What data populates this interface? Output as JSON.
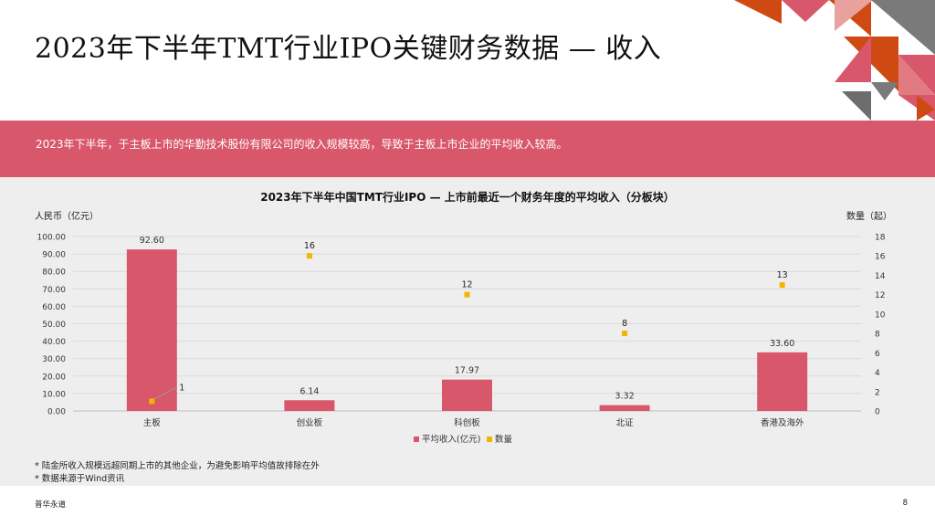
{
  "page": {
    "title": "2023年下半年TMT行业IPO关键财务数据 — 收入",
    "banner": "2023年下半年，于主板上市的华勤技术股份有限公司的收入规模较高，导致于主板上市企业的平均收入较高。",
    "notes": [
      "* 陆金所收入规模远超同期上市的其他企业，为避免影响平均值故排除在外",
      "* 数据来源于Wind资讯"
    ],
    "footer_left": "普华永道",
    "page_number": "8"
  },
  "colors": {
    "bar": "#d9576b",
    "marker": "#f5b400",
    "banner": "#d9576b",
    "panel": "#efeeee",
    "deco_orange": "#cf4a12",
    "deco_red": "#d9576b",
    "deco_gray": "#7a7a7a"
  },
  "chart_data": {
    "type": "bar",
    "title": "2023年下半年中国TMT行业IPO — 上市前最近一个财务年度的平均收入（分板块）",
    "ylabel": "人民币（亿元）",
    "y2label": "数量（起）",
    "categories": [
      "主板",
      "创业板",
      "科创板",
      "北证",
      "香港及海外"
    ],
    "series": [
      {
        "name": "平均收入(亿元)",
        "kind": "bar",
        "axis": "left",
        "values": [
          92.6,
          6.14,
          17.97,
          3.32,
          33.6
        ],
        "labels": [
          "92.60",
          "6.14",
          "17.97",
          "3.32",
          "33.60"
        ]
      },
      {
        "name": "数量",
        "kind": "scatter",
        "axis": "right",
        "values": [
          1,
          16,
          12,
          8,
          13
        ],
        "labels": [
          "1",
          "16",
          "12",
          "8",
          "13"
        ]
      }
    ],
    "ylim": [
      0,
      100
    ],
    "y2lim": [
      0,
      18
    ],
    "yticks": [
      "0.00",
      "10.00",
      "20.00",
      "30.00",
      "40.00",
      "50.00",
      "60.00",
      "70.00",
      "80.00",
      "90.00",
      "100.00"
    ],
    "y2ticks": [
      "0",
      "2",
      "4",
      "6",
      "8",
      "10",
      "12",
      "14",
      "16",
      "18"
    ],
    "grid": true,
    "legend_position": "bottom"
  }
}
